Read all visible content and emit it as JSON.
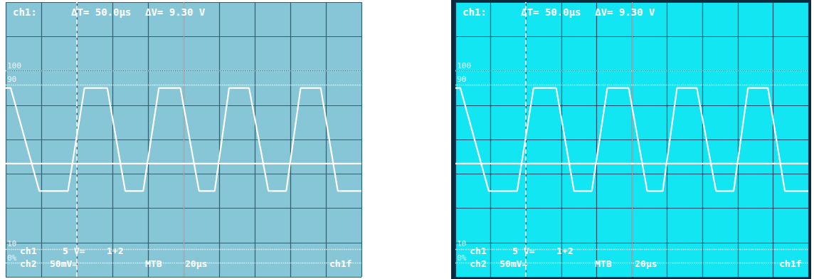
{
  "chart_data": [
    {
      "type": "line",
      "header": [
        "ch1:",
        "ΔT= 50.0μs",
        "ΔV= 9.30 V"
      ],
      "footer": [
        [
          "ch1",
          "5 V=",
          "1+2"
        ],
        [
          "ch2",
          "50mV=",
          "MTB",
          "20μs",
          "ch1f"
        ]
      ],
      "markers": [
        {
          "value": 10,
          "label": "100"
        },
        {
          "value": 8,
          "label": "90"
        },
        {
          "value": -16,
          "label": "10"
        },
        {
          "value": -18,
          "label": "0%"
        }
      ],
      "cursor_x": 40,
      "series": [
        {
          "name": "ch1",
          "color": "#ffffff",
          "x": [
            0,
            2.8,
            18.9,
            35,
            44.3,
            57.1,
            67.2,
            77.3,
            86.1,
            98.2,
            108.7,
            117.5,
            125.6,
            136.8,
            147.7,
            157.7,
            165.8,
            177.1,
            186.7,
            200
          ],
          "values": [
            7.5,
            7.5,
            -7.5,
            -7.5,
            7.5,
            7.5,
            -7.5,
            -7.5,
            7.5,
            7.5,
            -7.5,
            -7.5,
            7.5,
            7.5,
            -7.5,
            -7.5,
            7.5,
            7.5,
            -7.5,
            -7.5
          ]
        },
        {
          "name": "ch2",
          "color": "#ffffff",
          "x": [
            0,
            200
          ],
          "values": [
            -3.5,
            -3.5
          ]
        }
      ],
      "xlim": [
        0,
        200
      ],
      "xticks": [
        0,
        20,
        40,
        60,
        80,
        100,
        120,
        140,
        160,
        180,
        200
      ],
      "ylim": [
        -20,
        20
      ],
      "yticks": [
        -20,
        -15,
        -10,
        -5,
        0,
        5,
        10,
        15,
        20
      ],
      "grid": true,
      "tick_labels": false
    },
    {
      "type": "line",
      "header": [
        "ch1:",
        "ΔT= 50.0μs",
        "ΔV= 9.30 V"
      ],
      "footer": [
        [
          "ch1",
          "5 V=",
          "1+2"
        ],
        [
          "ch2",
          "50mV=",
          "MTB",
          "20μs",
          "ch1f"
        ]
      ],
      "markers": [
        {
          "value": 10,
          "label": "100"
        },
        {
          "value": 8,
          "label": "90"
        },
        {
          "value": -16,
          "label": "10"
        },
        {
          "value": -18,
          "label": "0%"
        }
      ],
      "cursor_x": 40,
      "series": [
        {
          "name": "ch1",
          "color": "#ffffff",
          "x": [
            0,
            2.8,
            18.9,
            35,
            44.3,
            57.1,
            67.2,
            77.3,
            86.1,
            98.2,
            108.7,
            117.5,
            125.6,
            136.8,
            147.7,
            157.7,
            165.8,
            177.1,
            186.7,
            200
          ],
          "values": [
            7.5,
            7.5,
            -7.5,
            -7.5,
            7.5,
            7.5,
            -7.5,
            -7.5,
            7.5,
            7.5,
            -7.5,
            -7.5,
            7.5,
            7.5,
            -7.5,
            -7.5,
            7.5,
            7.5,
            -7.5,
            -7.5
          ]
        },
        {
          "name": "ch2",
          "color": "#ffffff",
          "x": [
            0,
            200
          ],
          "values": [
            -3.5,
            -3.5
          ]
        }
      ],
      "xlim": [
        0,
        200
      ],
      "xticks": [
        0,
        20,
        40,
        60,
        80,
        100,
        120,
        140,
        160,
        180,
        200
      ],
      "ylim": [
        -20,
        20
      ],
      "yticks": [
        -20,
        -15,
        -10,
        -5,
        0,
        5,
        10,
        15,
        20
      ],
      "grid": true,
      "tick_labels": false
    }
  ]
}
